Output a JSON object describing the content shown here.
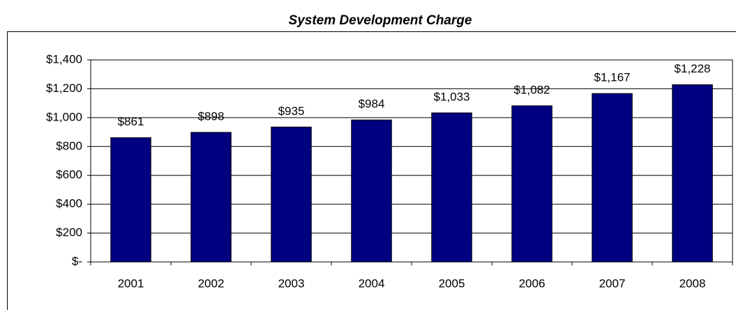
{
  "chart_data": {
    "type": "bar",
    "title": "System Development Charge",
    "categories": [
      "2001",
      "2002",
      "2003",
      "2004",
      "2005",
      "2006",
      "2007",
      "2008"
    ],
    "values": [
      861,
      898,
      935,
      984,
      1033,
      1082,
      1167,
      1228
    ],
    "value_labels": [
      "$861",
      "$898",
      "$935",
      "$984",
      "$1,033",
      "$1,082",
      "$1,167",
      "$1,228"
    ],
    "color": "#000080",
    "ylim": [
      0,
      1400
    ],
    "yticks": [
      {
        "value": 0,
        "label": "$-"
      },
      {
        "value": 200,
        "label": "$200"
      },
      {
        "value": 400,
        "label": "$400"
      },
      {
        "value": 600,
        "label": "$600"
      },
      {
        "value": 800,
        "label": "$800"
      },
      {
        "value": 1000,
        "label": "$1,000"
      },
      {
        "value": 1200,
        "label": "$1,200"
      },
      {
        "value": 1400,
        "label": "$1,400"
      }
    ],
    "grid": true
  }
}
